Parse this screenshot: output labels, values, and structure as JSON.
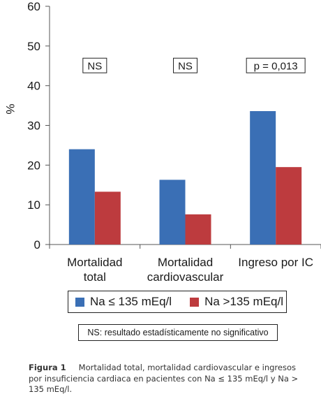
{
  "chart_data": {
    "type": "bar",
    "ylabel": "%",
    "ylim": [
      0,
      60
    ],
    "yticks": [
      0,
      10,
      20,
      30,
      40,
      50,
      60
    ],
    "categories": [
      "Mortalidad\ntotal",
      "Mortalidad\ncardiovascular",
      "Ingreso por IC"
    ],
    "series": [
      {
        "name": "Na ≤ 135 mEq/l",
        "color": "#3a6fb5",
        "values": [
          24,
          16.3,
          33.6
        ]
      },
      {
        "name": "Na >135 mEq/l",
        "color": "#bd3b3e",
        "values": [
          13.3,
          7.6,
          19.5
        ]
      }
    ],
    "annotations": [
      "NS",
      "NS",
      "p = 0,013"
    ],
    "annotation_y": 45,
    "legend_position": "bottom",
    "grid": false
  },
  "note": "NS: resultado estadísticamente no significativo",
  "caption": {
    "label": "Figura 1",
    "text": "Mortalidad total, mortalidad cardiovascular e ingresos por insuficiencia cardiaca en pacientes con Na ≤ 135 mEq/l y Na > 135 mEq/l."
  }
}
